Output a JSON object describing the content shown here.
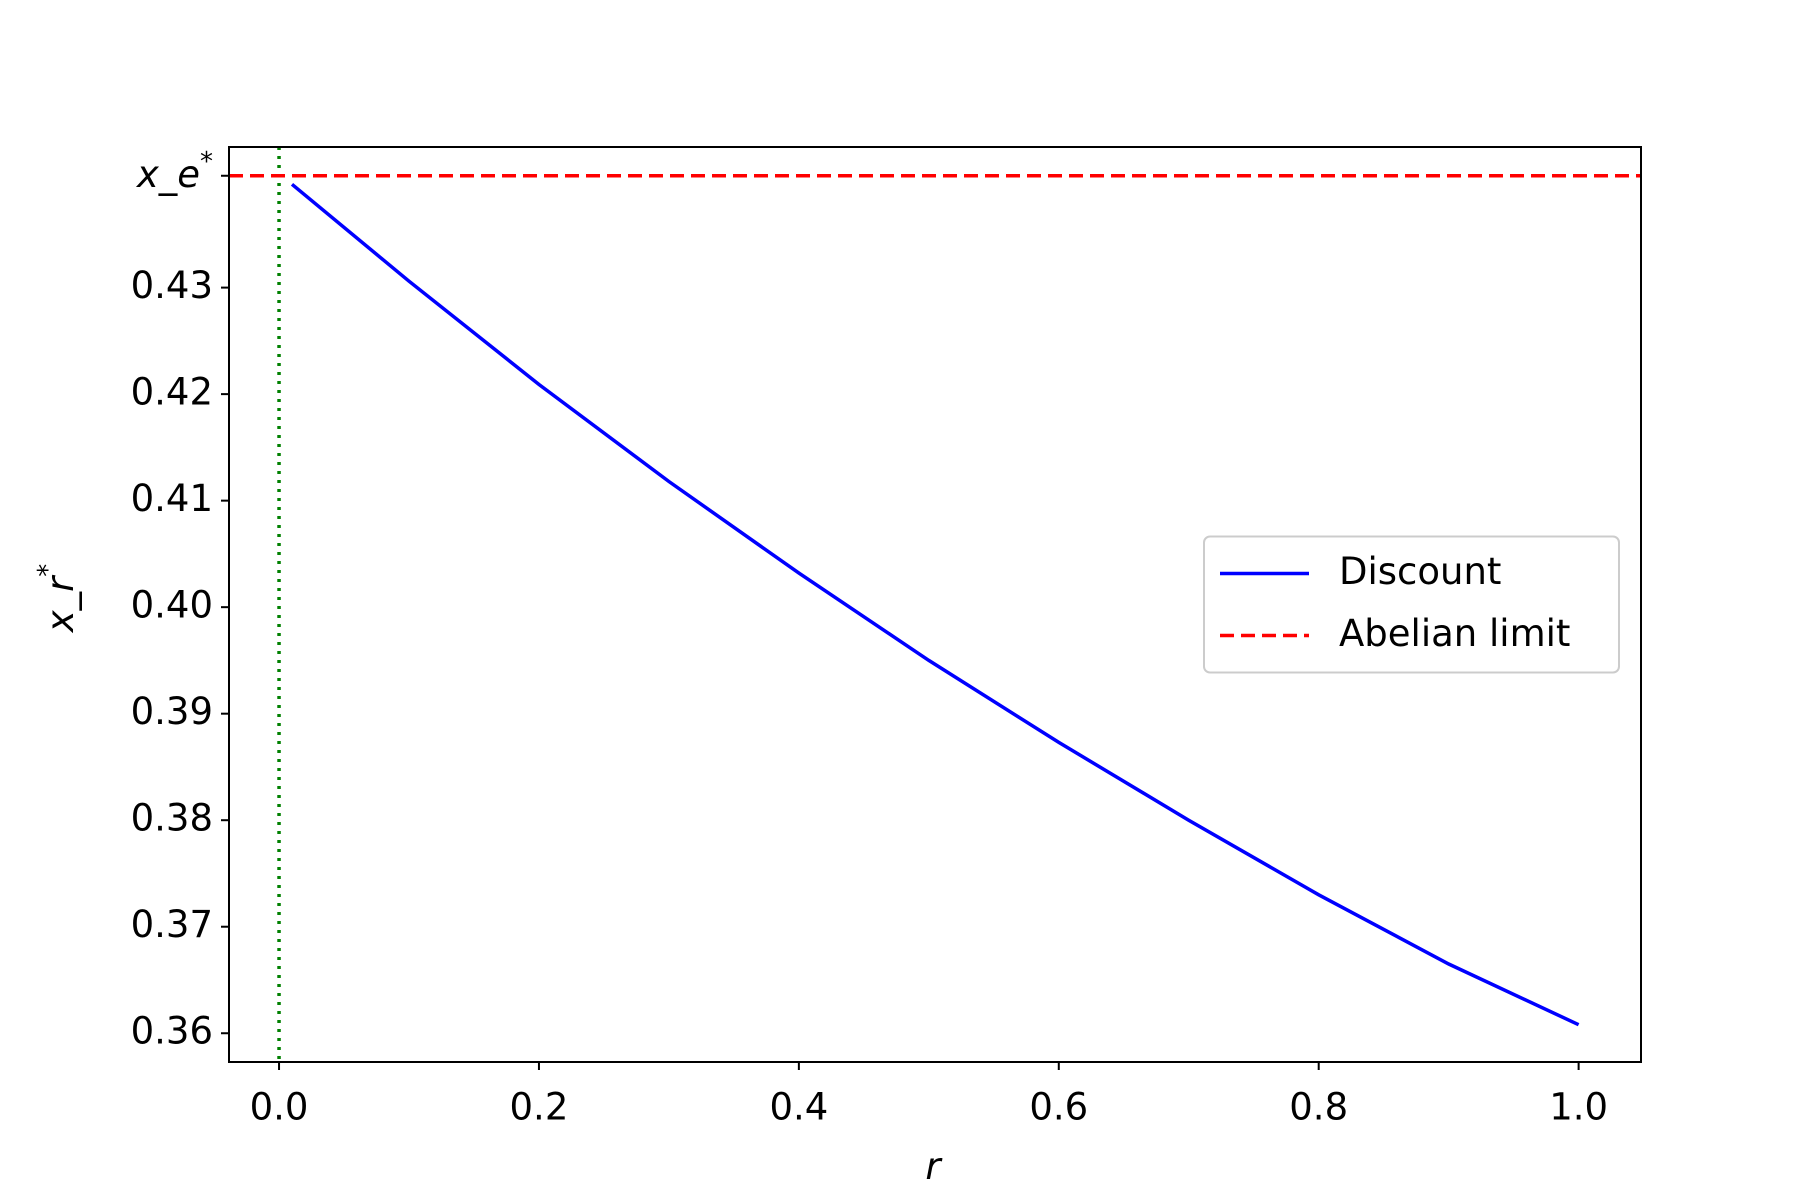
{
  "chart_data": {
    "type": "line",
    "xlabel": "r",
    "ylabel": "x_r^*",
    "xlim": [
      -0.0385,
      1.048
    ],
    "ylim": [
      0.3573,
      0.4432
    ],
    "xticks": [
      {
        "value": 0,
        "label": "0.0"
      },
      0.2,
      0.4,
      0.6,
      0.8,
      {
        "value": 1,
        "label": "1.0"
      }
    ],
    "yticks": [
      0.36,
      0.37,
      0.38,
      0.39,
      {
        "value": 0.4,
        "label": "0.40"
      },
      0.41,
      0.42,
      0.43,
      {
        "value": 0.4405,
        "label": "x_e^*"
      }
    ],
    "legend": "center right",
    "series": [
      {
        "name": "Discount",
        "color": "#0000ff",
        "style": "solid",
        "x": [
          0.01,
          0.1,
          0.2,
          0.3,
          0.4,
          0.5,
          0.6,
          0.7,
          0.8,
          0.9,
          1.0
        ],
        "values": [
          0.4397,
          0.4306,
          0.4209,
          0.4118,
          0.4032,
          0.395,
          0.3873,
          0.38,
          0.373,
          0.3665,
          0.3608
        ]
      },
      {
        "name": "Abelian limit",
        "color": "#ff0000",
        "style": "dashed",
        "hline": 0.4405
      }
    ],
    "vline": {
      "x": 0,
      "color": "#008000",
      "style": "dotted"
    }
  }
}
